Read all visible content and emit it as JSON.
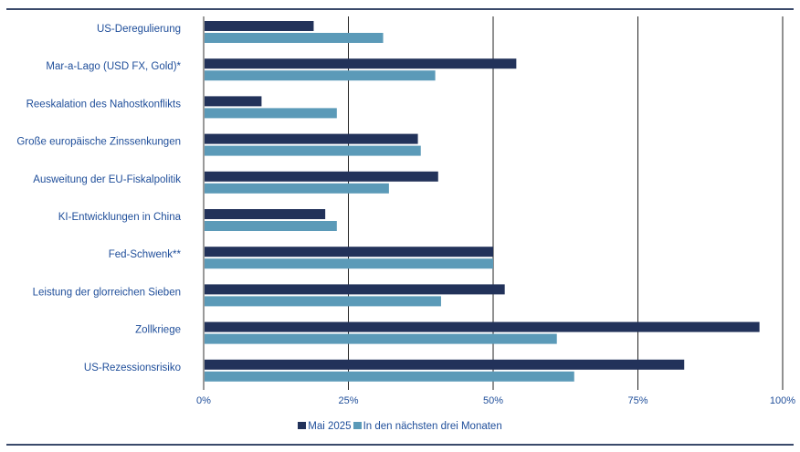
{
  "chart_data": {
    "type": "bar",
    "orientation": "horizontal",
    "categories": [
      "US-Deregulierung",
      "Mar-a-Lago (USD FX, Gold)*",
      "Reeskalation des Nahostkonflikts",
      "Große europäische Zinssenkungen",
      "Ausweitung der EU-Fiskalpolitik",
      "KI-Entwicklungen in China",
      "Fed-Schwenk**",
      "Leistung der glorreichen Sieben",
      "Zollkriege",
      "US-Rezessionsrisiko"
    ],
    "series": [
      {
        "name": "Mai 2025",
        "color": "#22325a",
        "values": [
          19,
          54,
          10,
          37,
          40.5,
          21,
          50,
          52,
          96,
          83
        ]
      },
      {
        "name": "In den nächsten drei Monaten",
        "color": "#5b9ab8",
        "values": [
          31,
          40,
          23,
          37.5,
          32,
          23,
          50,
          41,
          61,
          64
        ]
      }
    ],
    "xlim": [
      0,
      100
    ],
    "xticks": [
      0,
      25,
      50,
      75,
      100
    ],
    "xtick_labels": [
      "0%",
      "25%",
      "50%",
      "75%",
      "100%"
    ],
    "grid": true,
    "legend": "bottom"
  }
}
